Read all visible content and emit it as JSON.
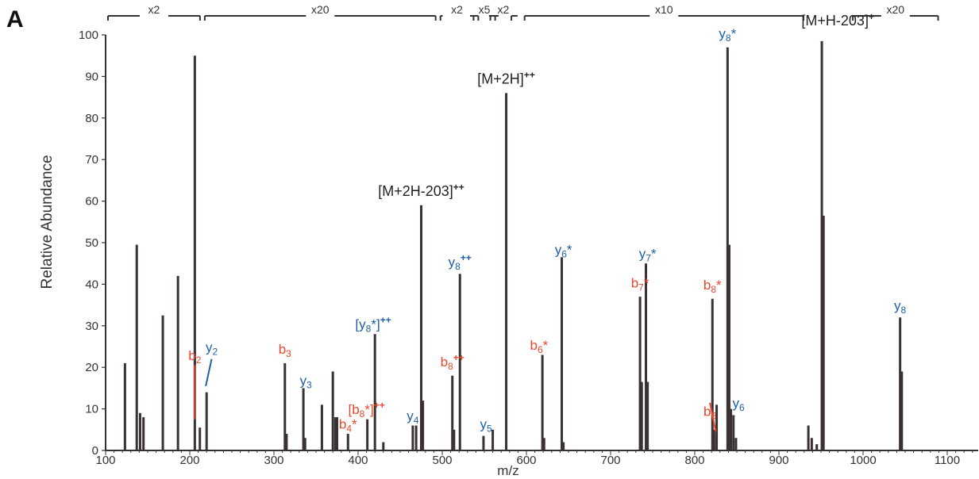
{
  "panel_label": "A",
  "chart_data": {
    "type": "bar",
    "xlabel": "m/z",
    "ylabel": "Relative Abundance",
    "xlim": [
      100,
      1170
    ],
    "ylim": [
      0,
      100
    ],
    "xticks": [
      100,
      200,
      300,
      400,
      500,
      600,
      700,
      800,
      900,
      1000,
      1100
    ],
    "yticks": [
      0,
      10,
      20,
      30,
      40,
      50,
      60,
      70,
      80,
      90,
      100
    ],
    "grid": false,
    "legend": "none",
    "colors": {
      "bar": "#3a3232",
      "b_ion": "#e8472c",
      "y_ion": "#1f5fa8",
      "precursor": "#222222"
    },
    "peaks": [
      [
        123,
        21
      ],
      [
        137,
        49.5
      ],
      [
        141,
        9
      ],
      [
        145,
        8
      ],
      [
        168,
        32.5
      ],
      [
        186,
        42
      ],
      [
        206,
        95
      ],
      [
        212,
        5.5
      ],
      [
        220,
        14
      ],
      [
        313,
        21
      ],
      [
        315,
        4
      ],
      [
        335,
        15
      ],
      [
        337,
        3
      ],
      [
        357,
        11
      ],
      [
        370,
        19
      ],
      [
        373,
        8
      ],
      [
        375,
        8
      ],
      [
        388,
        4
      ],
      [
        411,
        7.5
      ],
      [
        420,
        28
      ],
      [
        430,
        2
      ],
      [
        465,
        6
      ],
      [
        469,
        6
      ],
      [
        475,
        59
      ],
      [
        477,
        12
      ],
      [
        512,
        18
      ],
      [
        514,
        5
      ],
      [
        521,
        42.5
      ],
      [
        549,
        3.5
      ],
      [
        560,
        5
      ],
      [
        576,
        86
      ],
      [
        619,
        23
      ],
      [
        621,
        3
      ],
      [
        642,
        46.5
      ],
      [
        644,
        2
      ],
      [
        735,
        37
      ],
      [
        737,
        16.5
      ],
      [
        742,
        45
      ],
      [
        744,
        16.5
      ],
      [
        821,
        36.5
      ],
      [
        823,
        5
      ],
      [
        826,
        11
      ],
      [
        839,
        97
      ],
      [
        841,
        49.5
      ],
      [
        843,
        10
      ],
      [
        846,
        8.5
      ],
      [
        849,
        3
      ],
      [
        935,
        6
      ],
      [
        939,
        3
      ],
      [
        945,
        1.5
      ],
      [
        951,
        98.5
      ],
      [
        953,
        56.5
      ],
      [
        1044,
        32
      ],
      [
        1046,
        19
      ]
    ],
    "magnification_segments": [
      {
        "label": "x2",
        "from": 100,
        "to": 215
      },
      {
        "label": "x20",
        "from": 215,
        "to": 495
      },
      {
        "label": "x2",
        "from": 495,
        "to": 540
      },
      {
        "label": "x5",
        "from": 540,
        "to": 560
      },
      {
        "label": "x2",
        "from": 560,
        "to": 585
      },
      {
        "label": "x10",
        "from": 595,
        "to": 932
      },
      {
        "label": "x20",
        "from": 985,
        "to": 1092
      }
    ],
    "annotations": [
      {
        "base": "[M+H-203]",
        "sup": "+",
        "sub": "",
        "star": false,
        "color": "precursor",
        "x": 970,
        "y": 101.5
      },
      {
        "base": "[M+2H]",
        "sup": "++",
        "sub": "",
        "star": false,
        "color": "precursor",
        "x": 576,
        "y": 87.5
      },
      {
        "base": "[M+2H-203]",
        "sup": "++",
        "sub": "",
        "star": false,
        "color": "precursor",
        "x": 475,
        "y": 60.5
      },
      {
        "base": "y",
        "sub": "8",
        "sup": "",
        "star": true,
        "color": "y_ion",
        "x": 839,
        "y": 98.5
      },
      {
        "base": "y",
        "sub": "8",
        "sup": "++",
        "star": false,
        "color": "y_ion",
        "x": 521,
        "y": 43.5
      },
      {
        "base": "y",
        "sub": "6",
        "sup": "",
        "star": true,
        "color": "y_ion",
        "x": 644,
        "y": 46.5
      },
      {
        "base": "y",
        "sub": "7",
        "sup": "",
        "star": true,
        "color": "y_ion",
        "x": 744,
        "y": 45.5
      },
      {
        "base": "b",
        "sub": "7",
        "sup": "",
        "star": true,
        "color": "b_ion",
        "x": 735,
        "y": 38.5
      },
      {
        "base": "b",
        "sub": "8",
        "sup": "",
        "star": true,
        "color": "b_ion",
        "x": 821,
        "y": 38
      },
      {
        "base": "y",
        "sub": "8",
        "sup": "",
        "star": false,
        "color": "y_ion",
        "x": 1044,
        "y": 33
      },
      {
        "base": "[y",
        "sub": "8",
        "sup": "++",
        "star": true,
        "bracket": true,
        "color": "y_ion",
        "x": 418,
        "y": 28.5
      },
      {
        "base": "b",
        "sub": "6",
        "sup": "",
        "star": true,
        "color": "b_ion",
        "x": 615,
        "y": 23.5
      },
      {
        "base": "b",
        "sub": "3",
        "sup": "",
        "star": false,
        "color": "b_ion",
        "x": 313,
        "y": 22.5
      },
      {
        "base": "b",
        "sub": "8",
        "sup": "++",
        "star": false,
        "color": "b_ion",
        "x": 512,
        "y": 19.5
      },
      {
        "base": "b",
        "sub": "2",
        "sup": "",
        "star": false,
        "color": "b_ion",
        "x": 206,
        "y": 21
      },
      {
        "base": "y",
        "sub": "2",
        "sup": "",
        "star": false,
        "color": "y_ion",
        "x": 226,
        "y": 23
      },
      {
        "base": "y",
        "sub": "3",
        "sup": "",
        "star": false,
        "color": "y_ion",
        "x": 338,
        "y": 15
      },
      {
        "base": "[b",
        "sub": "8",
        "sup": "++",
        "star": true,
        "bracket": true,
        "color": "b_ion",
        "x": 410,
        "y": 8
      },
      {
        "base": "b",
        "sub": "4",
        "sup": "",
        "star": true,
        "color": "b_ion",
        "x": 388,
        "y": 4.5
      },
      {
        "base": "y",
        "sub": "4",
        "sup": "",
        "star": false,
        "color": "y_ion",
        "x": 465,
        "y": 6.5
      },
      {
        "base": "y",
        "sub": "5",
        "sup": "",
        "star": false,
        "color": "y_ion",
        "x": 552,
        "y": 4.5
      },
      {
        "base": "b",
        "sub": "6",
        "sup": "",
        "star": false,
        "color": "b_ion",
        "x": 818,
        "y": 7.5
      },
      {
        "base": "y",
        "sub": "6",
        "sup": "",
        "star": false,
        "color": "y_ion",
        "x": 852,
        "y": 9.5
      }
    ]
  }
}
